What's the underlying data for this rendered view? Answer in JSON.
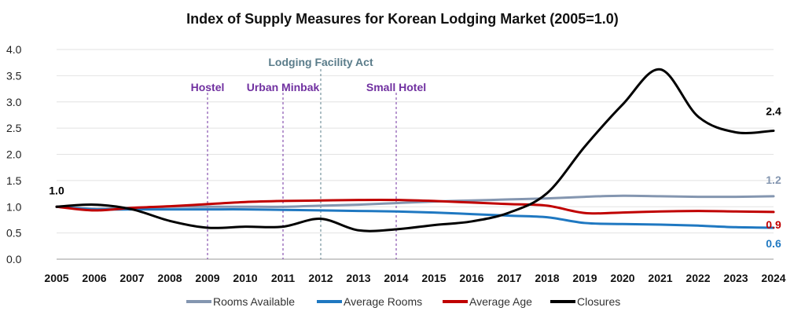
{
  "chart_data": {
    "type": "line",
    "title": "Index of Supply Measures for Korean Lodging Market (2005=1.0)",
    "x": [
      2005,
      2006,
      2007,
      2008,
      2009,
      2010,
      2011,
      2012,
      2013,
      2014,
      2015,
      2016,
      2017,
      2018,
      2019,
      2020,
      2021,
      2022,
      2023,
      2024
    ],
    "ylim": [
      0,
      4
    ],
    "yticks": [
      "0.0",
      "0.5",
      "1.0",
      "1.5",
      "2.0",
      "2.5",
      "3.0",
      "3.5",
      "4.0"
    ],
    "grid": true,
    "legend_position": "bottom",
    "series": [
      {
        "name": "Rooms Available",
        "color": "#8496b0",
        "values": [
          1.0,
          0.96,
          0.98,
          1.0,
          1.0,
          1.0,
          1.0,
          1.02,
          1.04,
          1.07,
          1.1,
          1.12,
          1.14,
          1.16,
          1.19,
          1.21,
          1.2,
          1.19,
          1.19,
          1.2
        ]
      },
      {
        "name": "Average Rooms",
        "color": "#1f78c1",
        "values": [
          1.0,
          0.95,
          0.95,
          0.95,
          0.95,
          0.95,
          0.94,
          0.93,
          0.92,
          0.91,
          0.89,
          0.86,
          0.83,
          0.8,
          0.69,
          0.67,
          0.66,
          0.64,
          0.61,
          0.6
        ]
      },
      {
        "name": "Average Age",
        "color": "#c00000",
        "values": [
          1.0,
          0.93,
          0.98,
          1.01,
          1.05,
          1.09,
          1.11,
          1.12,
          1.13,
          1.13,
          1.11,
          1.08,
          1.05,
          1.02,
          0.88,
          0.89,
          0.91,
          0.92,
          0.91,
          0.9
        ]
      },
      {
        "name": "Closures",
        "color": "#000000",
        "values": [
          1.0,
          1.04,
          0.95,
          0.73,
          0.6,
          0.62,
          0.62,
          0.77,
          0.55,
          0.57,
          0.65,
          0.72,
          0.89,
          1.26,
          2.15,
          2.95,
          3.62,
          2.72,
          2.42,
          2.45
        ]
      }
    ],
    "annotations": [
      {
        "label": "Hostel",
        "year": 2009,
        "color": "#7030a0",
        "row": 2
      },
      {
        "label": "Urban Minbak",
        "year": 2011,
        "color": "#7030a0",
        "row": 2
      },
      {
        "label": "Lodging Facility Act",
        "year": 2012,
        "color": "#5a7c8a",
        "row": 1
      },
      {
        "label": "Small Hotel",
        "year": 2014,
        "color": "#7030a0",
        "row": 2
      }
    ],
    "end_labels": [
      {
        "text": "1.0",
        "color": "#000000",
        "year": 2005,
        "value": 1.0
      },
      {
        "text": "2.4",
        "color": "#000000",
        "year": 2024,
        "value": 2.45
      },
      {
        "text": "1.2",
        "color": "#8496b0",
        "year": 2024,
        "value": 1.2
      },
      {
        "text": "0.9",
        "color": "#c00000",
        "year": 2024,
        "value": 0.9
      },
      {
        "text": "0.6",
        "color": "#1f78c1",
        "year": 2024,
        "value": 0.6
      }
    ]
  }
}
